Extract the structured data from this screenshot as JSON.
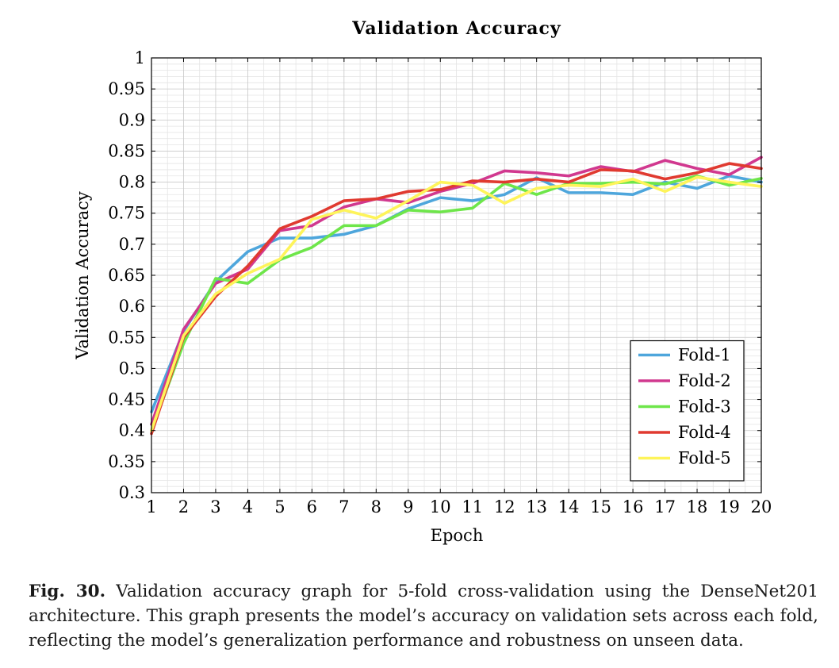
{
  "chart_data": {
    "type": "line",
    "title": "Validation Accuracy",
    "xlabel": "Epoch",
    "ylabel": "Validation Accuracy",
    "xlim": [
      1,
      20
    ],
    "ylim": [
      0.3,
      1
    ],
    "x": [
      1,
      2,
      3,
      4,
      5,
      6,
      7,
      8,
      9,
      10,
      11,
      12,
      13,
      14,
      15,
      16,
      17,
      18,
      19,
      20
    ],
    "x_ticks": [
      "1",
      "2",
      "3",
      "4",
      "5",
      "6",
      "7",
      "8",
      "9",
      "10",
      "11",
      "12",
      "13",
      "14",
      "15",
      "16",
      "17",
      "18",
      "19",
      "20"
    ],
    "y_ticks": [
      "0.3",
      "0.35",
      "0.4",
      "0.45",
      "0.5",
      "0.55",
      "0.6",
      "0.65",
      "0.7",
      "0.75",
      "0.8",
      "0.85",
      "0.9",
      "0.95",
      "1"
    ],
    "grid": true,
    "legend_position": "bottom-right",
    "series": [
      {
        "name": "Fold-1",
        "color": "#4ea6dc",
        "values": [
          0.43,
          0.56,
          0.64,
          0.688,
          0.71,
          0.71,
          0.716,
          0.73,
          0.757,
          0.775,
          0.77,
          0.78,
          0.807,
          0.783,
          0.783,
          0.78,
          0.8,
          0.79,
          0.81,
          0.8
        ]
      },
      {
        "name": "Fold-2",
        "color": "#d1388f",
        "values": [
          0.41,
          0.563,
          0.637,
          0.66,
          0.722,
          0.73,
          0.76,
          0.773,
          0.767,
          0.785,
          0.798,
          0.818,
          0.815,
          0.81,
          0.825,
          0.817,
          0.835,
          0.822,
          0.812,
          0.84
        ]
      },
      {
        "name": "Fold-3",
        "color": "#6ee64a",
        "values": [
          0.4,
          0.54,
          0.645,
          0.637,
          0.675,
          0.695,
          0.73,
          0.73,
          0.755,
          0.752,
          0.758,
          0.798,
          0.78,
          0.798,
          0.798,
          0.8,
          0.797,
          0.81,
          0.795,
          0.806
        ]
      },
      {
        "name": "Fold-4",
        "color": "#e03a30",
        "values": [
          0.395,
          0.55,
          0.616,
          0.665,
          0.725,
          0.745,
          0.77,
          0.773,
          0.785,
          0.788,
          0.802,
          0.8,
          0.805,
          0.8,
          0.82,
          0.818,
          0.805,
          0.815,
          0.83,
          0.822
        ]
      },
      {
        "name": "Fold-5",
        "color": "#fef45a",
        "values": [
          0.4,
          0.553,
          0.62,
          0.653,
          0.676,
          0.74,
          0.755,
          0.742,
          0.77,
          0.8,
          0.795,
          0.766,
          0.79,
          0.795,
          0.793,
          0.805,
          0.785,
          0.808,
          0.8,
          0.793
        ]
      }
    ]
  },
  "caption": {
    "label": "Fig. 30.",
    "text": "Validation accuracy graph for 5-fold cross-validation using the DenseNet201 architecture. This graph presents the model’s accuracy on validation sets across each fold, reflecting the model’s generalization performance and robustness on unseen data."
  }
}
